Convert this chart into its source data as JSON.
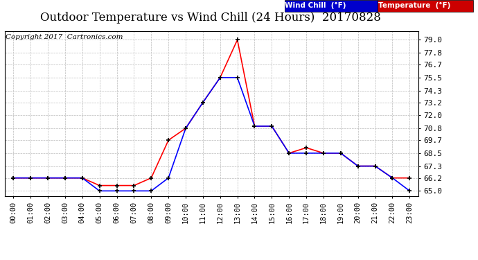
{
  "title": "Outdoor Temperature vs Wind Chill (24 Hours)  20170828",
  "copyright": "Copyright 2017  Cartronics.com",
  "hours": [
    "00:00",
    "01:00",
    "02:00",
    "03:00",
    "04:00",
    "05:00",
    "06:00",
    "07:00",
    "08:00",
    "09:00",
    "10:00",
    "11:00",
    "12:00",
    "13:00",
    "14:00",
    "15:00",
    "16:00",
    "17:00",
    "18:00",
    "19:00",
    "20:00",
    "21:00",
    "22:00",
    "23:00"
  ],
  "temperature": [
    66.2,
    66.2,
    66.2,
    66.2,
    66.2,
    65.5,
    65.5,
    65.5,
    66.2,
    69.7,
    70.8,
    73.2,
    75.5,
    79.0,
    71.0,
    71.0,
    68.5,
    69.0,
    68.5,
    68.5,
    67.3,
    67.3,
    66.2,
    66.2
  ],
  "wind_chill": [
    66.2,
    66.2,
    66.2,
    66.2,
    66.2,
    65.0,
    65.0,
    65.0,
    65.0,
    66.2,
    70.8,
    73.2,
    75.5,
    75.5,
    71.0,
    71.0,
    68.5,
    68.5,
    68.5,
    68.5,
    67.3,
    67.3,
    66.2,
    65.0
  ],
  "temp_color": "#ff0000",
  "wind_chill_color": "#0000ff",
  "ylim_min": 64.5,
  "ylim_max": 79.8,
  "yticks": [
    65.0,
    66.2,
    67.3,
    68.5,
    69.7,
    70.8,
    72.0,
    73.2,
    74.3,
    75.5,
    76.7,
    77.8,
    79.0
  ],
  "background_color": "#ffffff",
  "grid_color": "#bbbbbb",
  "title_fontsize": 12,
  "copyright_fontsize": 7.5,
  "legend_wind_color": "#0000cc",
  "legend_temp_color": "#cc0000"
}
